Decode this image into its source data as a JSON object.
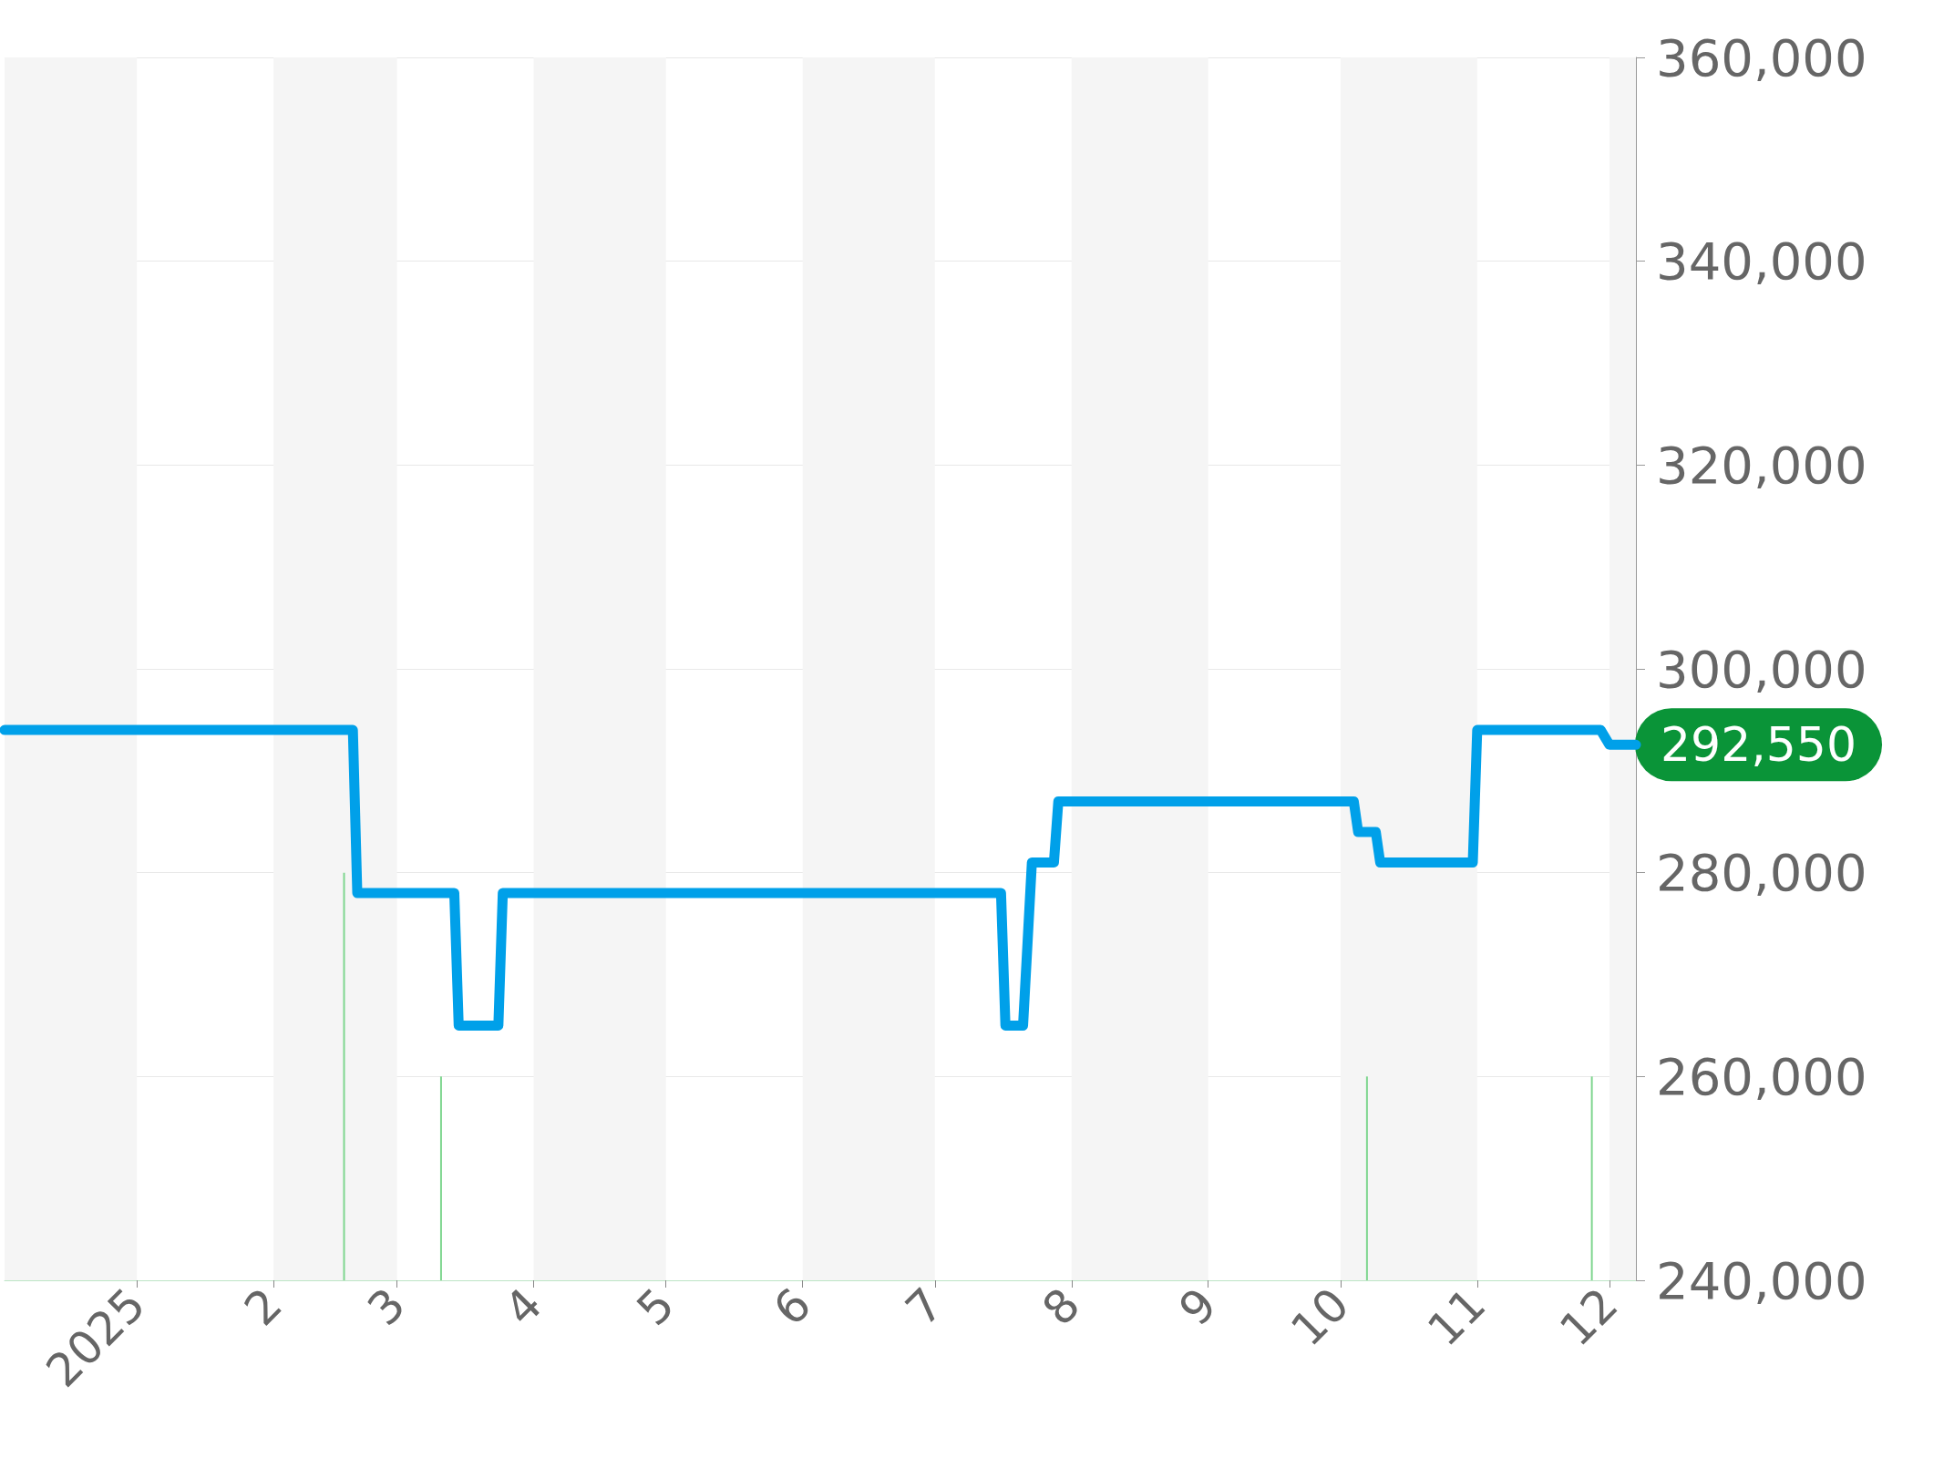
{
  "chart_data": {
    "type": "line",
    "x": [
      "2024-12-02",
      "2025-02-19",
      "2025-02-20",
      "2025-03-14",
      "2025-03-15",
      "2025-03-24",
      "2025-03-25",
      "2025-07-16",
      "2025-07-17",
      "2025-07-21",
      "2025-07-23",
      "2025-07-28",
      "2025-07-29",
      "2025-10-04",
      "2025-10-05",
      "2025-10-09",
      "2025-10-10",
      "2025-10-31",
      "2025-11-01",
      "2025-11-29",
      "2025-12-01",
      "2025-12-07"
    ],
    "series": [
      {
        "color": "#00a0e9",
        "values": [
          294000,
          294000,
          278000,
          278000,
          265000,
          265000,
          278000,
          278000,
          265000,
          265000,
          281000,
          281000,
          287000,
          287000,
          284000,
          284000,
          281000,
          281000,
          294000,
          294000,
          292550,
          292550
        ]
      },
      {
        "type": "bar",
        "color": "#7fd68f",
        "x": [
          "2025-02-17",
          "2025-03-11",
          "2025-10-07",
          "2025-11-27"
        ],
        "values": [
          280000,
          260000,
          260000,
          260000
        ]
      }
    ],
    "xlim": [
      "2024-12-02",
      "2025-12-07"
    ],
    "xticks": [
      {
        "value": "2025-01-01",
        "label": "2025"
      },
      {
        "value": "2025-02-01",
        "label": "2"
      },
      {
        "value": "2025-03-01",
        "label": "3"
      },
      {
        "value": "2025-04-01",
        "label": "4"
      },
      {
        "value": "2025-05-01",
        "label": "5"
      },
      {
        "value": "2025-06-01",
        "label": "6"
      },
      {
        "value": "2025-07-01",
        "label": "7"
      },
      {
        "value": "2025-08-01",
        "label": "8"
      },
      {
        "value": "2025-09-01",
        "label": "9"
      },
      {
        "value": "2025-10-01",
        "label": "10"
      },
      {
        "value": "2025-11-01",
        "label": "11"
      },
      {
        "value": "2025-12-01",
        "label": "12"
      }
    ],
    "ylim": [
      240000,
      360000
    ],
    "yticks": [
      {
        "value": 240000,
        "label": "240,000"
      },
      {
        "value": 260000,
        "label": "260,000"
      },
      {
        "value": 280000,
        "label": "280,000"
      },
      {
        "value": 300000,
        "label": "300,000"
      },
      {
        "value": 320000,
        "label": "320,000"
      },
      {
        "value": 340000,
        "label": "340,000"
      },
      {
        "value": 360000,
        "label": "360,000"
      }
    ],
    "grid": "y",
    "line_style": "solid",
    "bands": [
      {
        "axis": "x",
        "from": "2024-12-02",
        "to": "2025-01-01",
        "color": "#f5f5f5"
      },
      {
        "axis": "x",
        "from": "2025-02-01",
        "to": "2025-03-01",
        "color": "#f5f5f5"
      },
      {
        "axis": "x",
        "from": "2025-04-01",
        "to": "2025-05-01",
        "color": "#f5f5f5"
      },
      {
        "axis": "x",
        "from": "2025-06-01",
        "to": "2025-07-01",
        "color": "#f5f5f5"
      },
      {
        "axis": "x",
        "from": "2025-08-01",
        "to": "2025-09-01",
        "color": "#f5f5f5"
      },
      {
        "axis": "x",
        "from": "2025-10-01",
        "to": "2025-11-01",
        "color": "#f5f5f5"
      },
      {
        "axis": "x",
        "from": "2025-12-01",
        "to": "2025-12-07",
        "color": "#f5f5f5"
      }
    ],
    "annotations": [
      {
        "text": "292,550",
        "x": "2025-12-07",
        "y": 292550
      }
    ]
  }
}
